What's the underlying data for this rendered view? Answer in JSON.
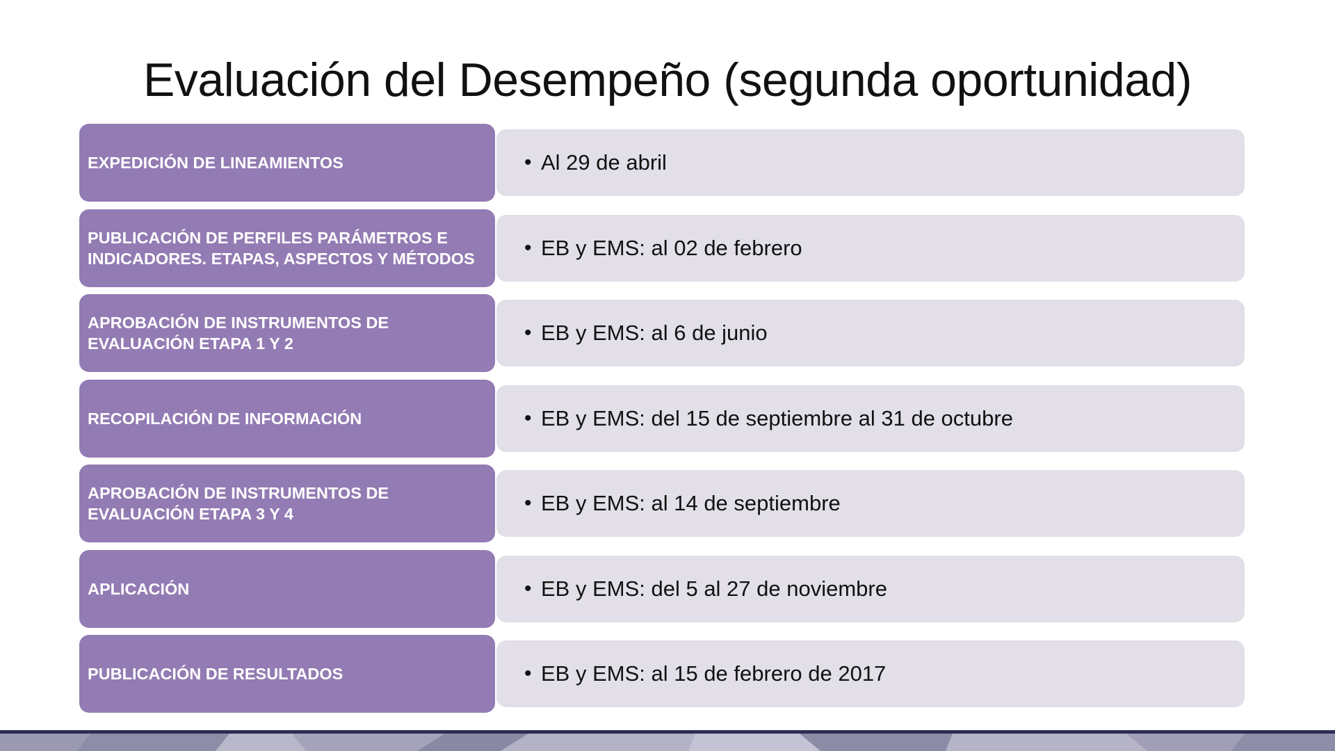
{
  "title": "Evaluación del Desempeño (segunda oportunidad)",
  "bullet_glyph": "•",
  "colors": {
    "label_bg": "#937bb3",
    "value_bg": "#e2dfe8",
    "footer_line": "#2e2c55"
  },
  "rows": [
    {
      "label": "EXPEDICIÓN DE LINEAMIENTOS",
      "value": "Al 29 de abril"
    },
    {
      "label": "PUBLICACIÓN DE PERFILES PARÁMETROS E INDICADORES. ETAPAS,  ASPECTOS Y MÉTODOS",
      "value": "EB y EMS: al 02 de febrero"
    },
    {
      "label": "APROBACIÓN DE INSTRUMENTOS DE EVALUACIÓN ETAPA 1 Y 2",
      "value": "EB y EMS: al 6 de junio"
    },
    {
      "label": "RECOPILACIÓN DE INFORMACIÓN",
      "value": "EB y EMS: del 15 de septiembre al 31 de octubre"
    },
    {
      "label": "APROBACIÓN DE INSTRUMENTOS DE EVALUACIÓN ETAPA 3 Y 4",
      "value": "EB y EMS: al 14 de septiembre"
    },
    {
      "label": "APLICACIÓN",
      "value": "EB y EMS: del 5 al 27 de noviembre"
    },
    {
      "label": "PUBLICACIÓN DE RESULTADOS",
      "value": "EB y EMS: al 15 de febrero de 2017"
    }
  ]
}
